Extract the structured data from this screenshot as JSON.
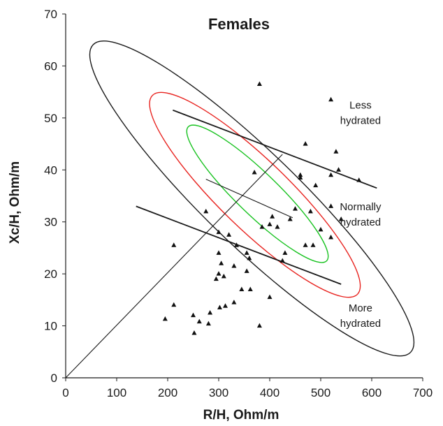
{
  "chart_data": {
    "type": "scatter",
    "title": "Females",
    "xlabel": "R/H, Ohm/m",
    "ylabel": "Xc/H, Ohm/m",
    "xlim": [
      0,
      700
    ],
    "ylim": [
      0,
      70
    ],
    "xticks": [
      "0",
      "100",
      "200",
      "300",
      "400",
      "500",
      "600",
      "700"
    ],
    "yticks": [
      "0",
      "10",
      "20",
      "30",
      "40",
      "50",
      "60",
      "70"
    ],
    "grid": false,
    "zones": [
      {
        "line1": "Less",
        "line2": "hydrated",
        "x": 578,
        "y": 51.5
      },
      {
        "line1": "Normally",
        "line2": "hydrated",
        "x": 578,
        "y": 32.0
      },
      {
        "line1": "More",
        "line2": "hydrated",
        "x": 578,
        "y": 12.5
      }
    ],
    "mean_vector": {
      "x": [
        0,
        425
      ],
      "y": [
        0,
        43
      ]
    },
    "ellipses": [
      {
        "name": "outer",
        "color": "#1a1a1a",
        "cx": 365,
        "cy": 34.5,
        "rx": 128,
        "ry": 19.5
      },
      {
        "name": "middle",
        "color": "#e8231f",
        "cx": 371,
        "cy": 35.2,
        "rx": 94,
        "ry": 12.6
      },
      {
        "name": "inner",
        "color": "#17c21f",
        "cx": 376,
        "cy": 35.4,
        "rx": 57,
        "ry": 8.5
      }
    ],
    "tolerance_lines": [
      {
        "x": [
          210,
          610
        ],
        "y": [
          51.5,
          36.5
        ]
      },
      {
        "x": [
          138,
          540
        ],
        "y": [
          33.0,
          18.0
        ]
      },
      {
        "x": [
          275,
          445
        ],
        "y": [
          38.2,
          30.8
        ]
      }
    ],
    "series": [
      {
        "marker": "triangle",
        "points": [
          [
            380,
            56.5
          ],
          [
            520,
            53.5
          ],
          [
            470,
            45
          ],
          [
            530,
            43.5
          ],
          [
            370,
            39.5
          ],
          [
            535,
            40
          ],
          [
            460,
            39
          ],
          [
            520,
            39
          ],
          [
            460,
            38.5
          ],
          [
            575,
            38
          ],
          [
            490,
            37
          ],
          [
            450,
            32.5
          ],
          [
            520,
            33
          ],
          [
            480,
            32
          ],
          [
            540,
            30.5
          ],
          [
            440,
            30.5
          ],
          [
            405,
            31
          ],
          [
            400,
            29.5
          ],
          [
            415,
            29
          ],
          [
            385,
            29
          ],
          [
            500,
            28.5
          ],
          [
            300,
            28
          ],
          [
            275,
            32
          ],
          [
            320,
            27.5
          ],
          [
            520,
            27
          ],
          [
            470,
            25.5
          ],
          [
            485,
            25.5
          ],
          [
            335,
            25.5
          ],
          [
            355,
            24
          ],
          [
            430,
            24
          ],
          [
            212,
            25.5
          ],
          [
            300,
            24
          ],
          [
            360,
            23
          ],
          [
            305,
            22
          ],
          [
            330,
            21.5
          ],
          [
            425,
            22.5
          ],
          [
            355,
            20.5
          ],
          [
            300,
            20
          ],
          [
            310,
            19.5
          ],
          [
            295,
            19
          ],
          [
            345,
            17
          ],
          [
            362,
            17
          ],
          [
            400,
            15.5
          ],
          [
            330,
            14.5
          ],
          [
            302,
            13.5
          ],
          [
            313,
            13.8
          ],
          [
            212,
            14
          ],
          [
            250,
            12
          ],
          [
            283,
            12.5
          ],
          [
            262,
            10.8
          ],
          [
            280,
            10.4
          ],
          [
            195,
            11.3
          ],
          [
            380,
            10
          ],
          [
            252,
            8.6
          ]
        ]
      }
    ]
  }
}
